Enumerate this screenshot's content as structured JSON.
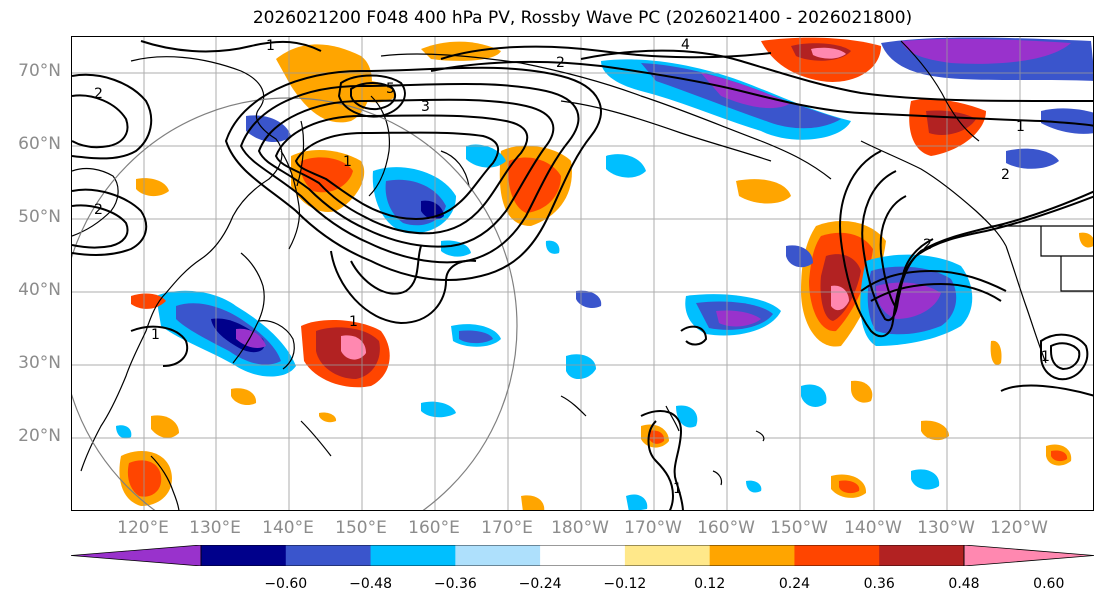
{
  "title": "2026021200 F048 400 hPa PV, Rossby Wave PC (2026021400 - 2026021800)",
  "lat_labels": [
    "70°N",
    "60°N",
    "50°N",
    "40°N",
    "30°N",
    "20°N"
  ],
  "lon_labels": [
    "120°E",
    "130°E",
    "140°E",
    "150°E",
    "160°E",
    "170°E",
    "180°W",
    "170°W",
    "160°W",
    "150°W",
    "140°W",
    "130°W",
    "120°W"
  ],
  "colorbar": {
    "ticks": [
      "−0.60",
      "−0.48",
      "−0.36",
      "−0.24",
      "−0.12",
      "0.12",
      "0.24",
      "0.36",
      "0.48",
      "0.60"
    ],
    "colors": [
      "#9932cc",
      "#00008b",
      "#3a55cc",
      "#00bfff",
      "#aee0fc",
      "#ffffff",
      "#ffe88a",
      "#ffa500",
      "#ff4500",
      "#b22222",
      "#ff88b0"
    ]
  },
  "contour_labels": [
    "1",
    "2",
    "3",
    "4",
    "5"
  ],
  "colors": {
    "contour": "#000000",
    "grid": "#9a9a9a",
    "coast": "#000000",
    "circle": "#808080"
  }
}
